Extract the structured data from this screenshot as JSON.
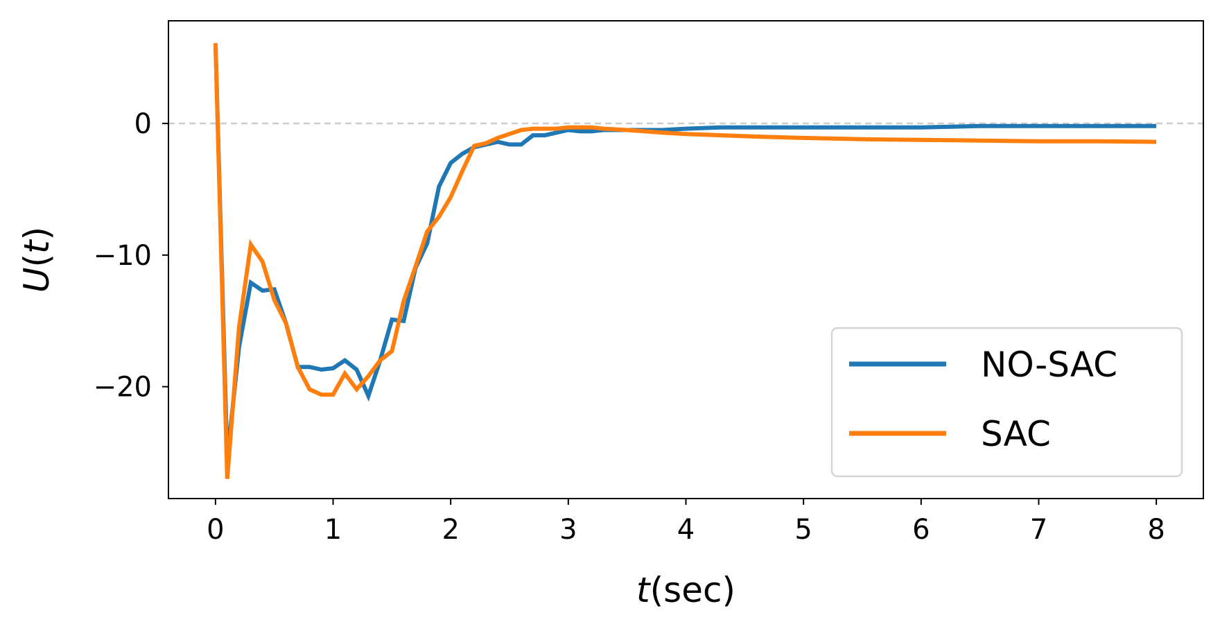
{
  "chart_data": {
    "type": "line",
    "title": "",
    "xlabel": {
      "var": "t",
      "unit": "(sec)"
    },
    "ylabel": {
      "var": "U",
      "open": "(",
      "arg": "t",
      "close": ")"
    },
    "xlim": [
      -0.4,
      8.4
    ],
    "ylim": [
      -28.5,
      7.8
    ],
    "xticks": [
      0,
      1,
      2,
      3,
      4,
      5,
      6,
      7,
      8
    ],
    "xtick_labels": [
      "0",
      "1",
      "2",
      "3",
      "4",
      "5",
      "6",
      "7",
      "8"
    ],
    "yticks": [
      0,
      -10,
      -20
    ],
    "ytick_labels": [
      "0",
      "−10",
      "−20"
    ],
    "grid": false,
    "reference_line": {
      "y": 0,
      "style": "dashed",
      "color": "#cccccc"
    },
    "legend": {
      "placement": "lower-right"
    },
    "series": [
      {
        "name": "NO-SAC",
        "color": "#1f77b4",
        "x": [
          0,
          0.1,
          0.2,
          0.3,
          0.4,
          0.5,
          0.6,
          0.7,
          0.8,
          0.9,
          1.0,
          1.1,
          1.2,
          1.3,
          1.4,
          1.5,
          1.6,
          1.7,
          1.8,
          1.9,
          2.0,
          2.1,
          2.2,
          2.3,
          2.4,
          2.5,
          2.6,
          2.7,
          2.8,
          2.9,
          3.0,
          3.1,
          3.2,
          3.3,
          3.5,
          3.8,
          4.0,
          4.3,
          4.6,
          5.0,
          5.5,
          6.0,
          6.5,
          7.0,
          7.5,
          8.0
        ],
        "y": [
          6.1,
          -25.5,
          -17.0,
          -12.1,
          -12.7,
          -12.6,
          -15.2,
          -18.5,
          -18.5,
          -18.7,
          -18.6,
          -18.0,
          -18.7,
          -20.7,
          -18.0,
          -14.9,
          -15.0,
          -11.0,
          -9.1,
          -4.8,
          -3.0,
          -2.3,
          -1.8,
          -1.6,
          -1.4,
          -1.6,
          -1.6,
          -0.9,
          -0.9,
          -0.7,
          -0.5,
          -0.6,
          -0.6,
          -0.5,
          -0.5,
          -0.5,
          -0.4,
          -0.3,
          -0.3,
          -0.3,
          -0.3,
          -0.3,
          -0.2,
          -0.2,
          -0.2,
          -0.2
        ]
      },
      {
        "name": "SAC",
        "color": "#ff7f0e",
        "x": [
          0,
          0.1,
          0.2,
          0.3,
          0.4,
          0.5,
          0.6,
          0.7,
          0.8,
          0.9,
          1.0,
          1.1,
          1.2,
          1.3,
          1.4,
          1.5,
          1.6,
          1.7,
          1.8,
          1.9,
          2.0,
          2.1,
          2.2,
          2.3,
          2.4,
          2.5,
          2.6,
          2.7,
          2.8,
          2.9,
          3.0,
          3.1,
          3.2,
          3.3,
          3.5,
          3.8,
          4.0,
          4.3,
          4.6,
          5.0,
          5.5,
          6.0,
          6.5,
          7.0,
          7.5,
          8.0
        ],
        "y": [
          6.1,
          -27.0,
          -15.5,
          -9.2,
          -10.5,
          -13.4,
          -15.2,
          -18.5,
          -20.2,
          -20.6,
          -20.6,
          -19.0,
          -20.2,
          -19.2,
          -18.0,
          -17.3,
          -13.5,
          -10.9,
          -8.2,
          -7.1,
          -5.6,
          -3.6,
          -1.7,
          -1.5,
          -1.1,
          -0.8,
          -0.5,
          -0.4,
          -0.4,
          -0.4,
          -0.3,
          -0.3,
          -0.3,
          -0.4,
          -0.5,
          -0.7,
          -0.8,
          -0.9,
          -1.0,
          -1.1,
          -1.2,
          -1.25,
          -1.3,
          -1.35,
          -1.35,
          -1.4
        ]
      }
    ]
  }
}
